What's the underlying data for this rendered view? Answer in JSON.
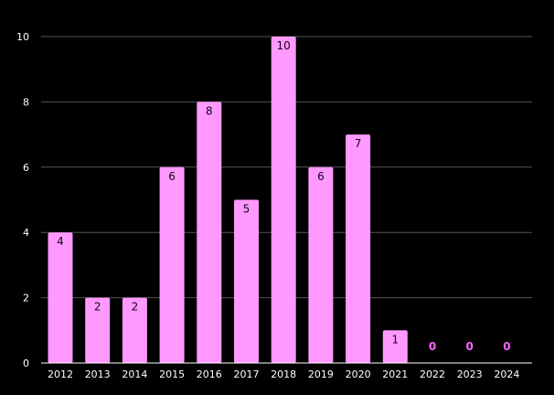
{
  "colors": {
    "background": "#000000",
    "bar": "#ff99ff",
    "grid": "#555555",
    "axis": "#ffffff",
    "tick_text": "#ffffff",
    "label_inside": "#1a001a",
    "label_zero": "#ff66ff"
  },
  "chart_data": {
    "type": "bar",
    "title": "",
    "xlabel": "",
    "ylabel": "",
    "categories": [
      "2012",
      "2013",
      "2014",
      "2015",
      "2016",
      "2017",
      "2018",
      "2019",
      "2020",
      "2021",
      "2022",
      "2023",
      "2024"
    ],
    "values": [
      4,
      2,
      2,
      6,
      8,
      5,
      10,
      6,
      7,
      1,
      0,
      0,
      0
    ],
    "ylim": [
      0,
      10
    ],
    "yticks": [
      0,
      2,
      4,
      6,
      8,
      10
    ],
    "grid": true,
    "data_labels": true,
    "legend": "none"
  }
}
